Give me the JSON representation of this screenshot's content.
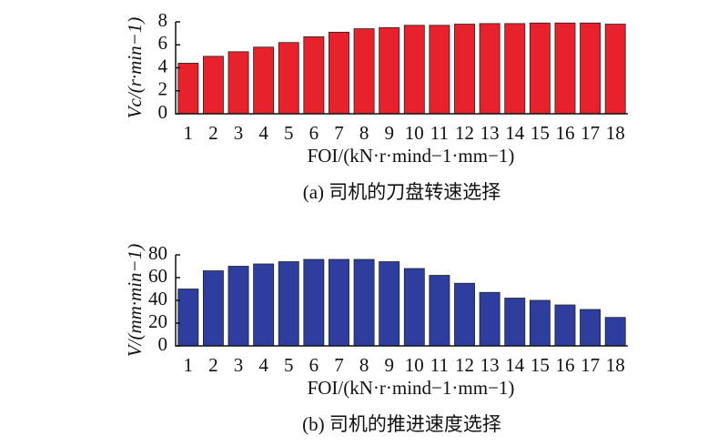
{
  "chart_data": [
    {
      "type": "bar",
      "caption": "(a) 司机的刀盘转速选择",
      "y_label": "Vc/(r·min−1)",
      "x_label": "FOI/(kN·r·mind−1·mm−1)",
      "categories": [
        "1",
        "2",
        "3",
        "4",
        "5",
        "6",
        "7",
        "8",
        "9",
        "10",
        "11",
        "12",
        "13",
        "14",
        "15",
        "16",
        "17",
        "18"
      ],
      "values": [
        4.4,
        5.0,
        5.4,
        5.8,
        6.2,
        6.7,
        7.1,
        7.4,
        7.5,
        7.7,
        7.7,
        7.8,
        7.85,
        7.85,
        7.9,
        7.9,
        7.9,
        7.8
      ],
      "color": "#e8222c",
      "ylim": [
        0,
        8
      ],
      "yticks": [
        0,
        2,
        4,
        6,
        8
      ]
    },
    {
      "type": "bar",
      "caption": "(b) 司机的推进速度选择",
      "y_label": "V/(mm·min−1)",
      "x_label": "FOI/(kN·r·mind−1·mm−1)",
      "categories": [
        "1",
        "2",
        "3",
        "4",
        "5",
        "6",
        "7",
        "8",
        "9",
        "10",
        "11",
        "12",
        "13",
        "14",
        "15",
        "16",
        "17",
        "18"
      ],
      "values": [
        50,
        66,
        70,
        72,
        74,
        76,
        76,
        76,
        74,
        68,
        62,
        55,
        47,
        42,
        40,
        36,
        32,
        25
      ],
      "color": "#2f3d9e",
      "ylim": [
        0,
        80
      ],
      "yticks": [
        0,
        20,
        40,
        60,
        80
      ]
    }
  ]
}
